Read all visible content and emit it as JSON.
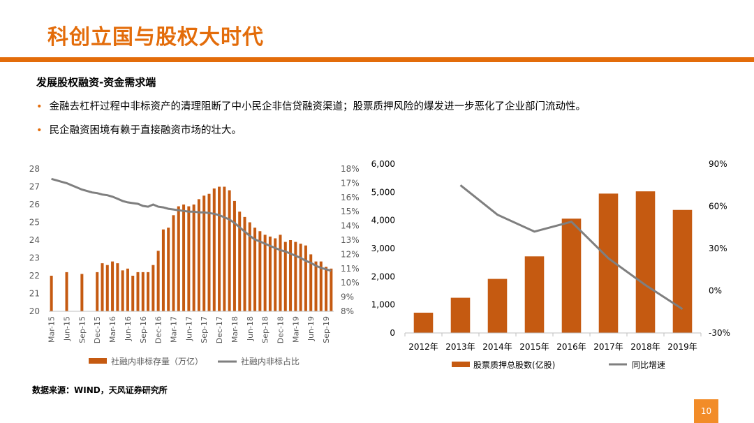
{
  "slide": {
    "title": "科创立国与股权大时代",
    "section": "发展股权融资-资金需求端",
    "bullets": [
      "金融去杠杆过程中非标资产的清理阻断了中小民企非信贷融资渠道；股票质押风险的爆发进一步恶化了企业部门流动性。",
      "民企融资困境有赖于直接融资市场的壮大。"
    ],
    "source": "数据来源：WIND，天风证券研究所",
    "page_number": "10"
  },
  "colors": {
    "accent": "#E36C0A",
    "bar": "#C55A11",
    "line": "#7F7F7F",
    "page_badge": "#F28C28"
  },
  "chart_data": [
    {
      "type": "bar+line",
      "categories": [
        "Mar-15",
        "Apr-15",
        "May-15",
        "Jun-15",
        "Jul-15",
        "Aug-15",
        "Sep-15",
        "Oct-15",
        "Nov-15",
        "Dec-15",
        "Jan-16",
        "Feb-16",
        "Mar-16",
        "Apr-16",
        "May-16",
        "Jun-16",
        "Jul-16",
        "Aug-16",
        "Sep-16",
        "Oct-16",
        "Nov-16",
        "Dec-16",
        "Jan-17",
        "Feb-17",
        "Mar-17",
        "Apr-17",
        "May-17",
        "Jun-17",
        "Jul-17",
        "Aug-17",
        "Sep-17",
        "Oct-17",
        "Nov-17",
        "Dec-17",
        "Jan-18",
        "Feb-18",
        "Mar-18",
        "Apr-18",
        "May-18",
        "Jun-18",
        "Jul-18",
        "Aug-18",
        "Sep-18",
        "Oct-18",
        "Nov-18",
        "Dec-18",
        "Jan-19",
        "Feb-19",
        "Mar-19",
        "Apr-19",
        "May-19",
        "Jun-19",
        "Jul-19",
        "Aug-19",
        "Sep-19",
        "Oct-19"
      ],
      "tick_labels": [
        "Mar-15",
        "Jun-15",
        "Sep-15",
        "Dec-15",
        "Mar-16",
        "Jun-16",
        "Sep-16",
        "Dec-16",
        "Mar-17",
        "Jun-17",
        "Sep-17",
        "Dec-17",
        "Mar-18",
        "Jun-18",
        "Sep-18",
        "Dec-18",
        "Mar-19",
        "Jun-19",
        "Sep-19"
      ],
      "series": [
        {
          "name": "社融内非标存量（万亿）",
          "kind": "bar",
          "axis": "left",
          "values": [
            22.0,
            null,
            null,
            22.2,
            null,
            null,
            22.1,
            null,
            null,
            22.2,
            22.7,
            22.6,
            22.8,
            22.7,
            22.3,
            22.4,
            22.0,
            22.2,
            22.2,
            22.2,
            22.6,
            23.4,
            24.6,
            24.7,
            25.4,
            25.9,
            26.0,
            25.9,
            26.0,
            26.3,
            26.5,
            26.6,
            26.9,
            27.0,
            27.0,
            26.8,
            26.2,
            25.6,
            25.3,
            25.0,
            24.7,
            24.5,
            24.3,
            24.2,
            24.1,
            24.3,
            23.9,
            24.0,
            23.9,
            23.8,
            23.7,
            23.2,
            22.8,
            22.8,
            22.5,
            22.4
          ]
        },
        {
          "name": "社融内非标占比",
          "kind": "line",
          "axis": "right",
          "values": [
            17.3,
            17.2,
            17.1,
            17.0,
            16.85,
            16.7,
            16.55,
            16.45,
            16.35,
            16.3,
            16.2,
            16.15,
            16.05,
            15.9,
            15.75,
            15.65,
            15.6,
            15.55,
            15.4,
            15.35,
            15.5,
            15.35,
            15.3,
            15.2,
            15.15,
            15.1,
            15.05,
            15.0,
            15.0,
            14.95,
            14.95,
            14.9,
            14.85,
            14.75,
            14.6,
            14.45,
            14.2,
            13.9,
            13.6,
            13.3,
            13.05,
            12.9,
            12.75,
            12.6,
            12.45,
            12.3,
            12.2,
            12.05,
            11.9,
            11.75,
            11.55,
            11.4,
            11.2,
            11.05,
            10.95,
            10.85
          ]
        }
      ],
      "y_left": {
        "min": 20,
        "max": 28,
        "ticks": [
          "20",
          "21",
          "22",
          "23",
          "24",
          "25",
          "26",
          "27",
          "28"
        ]
      },
      "y_right": {
        "min": 8,
        "max": 18,
        "ticks": [
          "8%",
          "9%",
          "10%",
          "11%",
          "12%",
          "13%",
          "14%",
          "15%",
          "16%",
          "17%",
          "18%"
        ]
      },
      "legend": [
        "社融内非标存量（万亿）",
        "社融内非标占比"
      ],
      "legend_position": "bottom",
      "grid": false
    },
    {
      "type": "bar+line",
      "categories": [
        "2012年",
        "2013年",
        "2014年",
        "2015年",
        "2016年",
        "2017年",
        "2018年",
        "2019年"
      ],
      "series": [
        {
          "name": "股票质押总股数(亿股)",
          "kind": "bar",
          "axis": "left",
          "values": [
            720,
            1250,
            1920,
            2720,
            4060,
            4950,
            5030,
            4370
          ]
        },
        {
          "name": "同比增速",
          "kind": "line",
          "axis": "right",
          "values": [
            null,
            75,
            54,
            42,
            49,
            23,
            4,
            -13
          ]
        }
      ],
      "y_left": {
        "min": 0,
        "max": 6000,
        "ticks": [
          "0",
          "1,000",
          "2,000",
          "3,000",
          "4,000",
          "5,000",
          "6,000"
        ]
      },
      "y_right": {
        "min": -30,
        "max": 90,
        "ticks": [
          "-30%",
          "0%",
          "30%",
          "60%",
          "90%"
        ]
      },
      "legend": [
        "股票质押总股数(亿股)",
        "同比增速"
      ],
      "legend_position": "bottom",
      "grid": false
    }
  ]
}
